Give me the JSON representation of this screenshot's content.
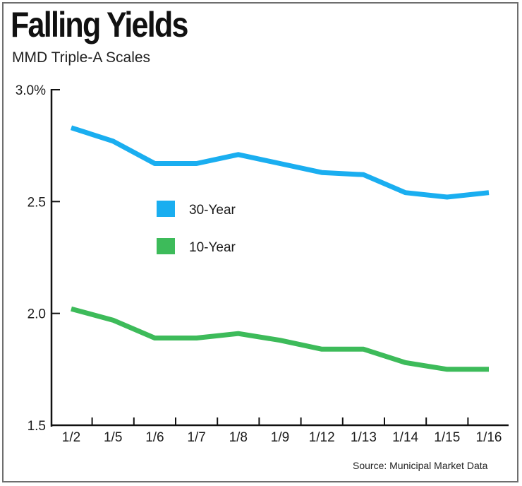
{
  "header": {
    "title": "Falling Yields",
    "subtitle": "MMD Triple-A Scales"
  },
  "footer": {
    "source": "Source: Municipal Market Data"
  },
  "colors": {
    "series_30_year": "#1aaef0",
    "series_10_year": "#3dbb5a",
    "axis": "#111111",
    "text": "#1a1a1a"
  },
  "chart_data": {
    "type": "line",
    "title": "Falling Yields",
    "subtitle": "MMD Triple-A Scales",
    "xlabel": "",
    "ylabel": "",
    "categories": [
      "1/2",
      "1/5",
      "1/6",
      "1/7",
      "1/8",
      "1/9",
      "1/12",
      "1/13",
      "1/14",
      "1/15",
      "1/16"
    ],
    "y_tick_labels": [
      "3.0%",
      "2.5",
      "2.0",
      "1.5"
    ],
    "y_ticks": [
      3.0,
      2.5,
      2.0,
      1.5
    ],
    "ylim": [
      1.5,
      3.0
    ],
    "grid": false,
    "legend_position": "center-left",
    "series": [
      {
        "name": "30-Year",
        "color": "#1aaef0",
        "values": [
          2.83,
          2.77,
          2.67,
          2.67,
          2.71,
          2.67,
          2.63,
          2.62,
          2.54,
          2.52,
          2.54
        ]
      },
      {
        "name": "10-Year",
        "color": "#3dbb5a",
        "values": [
          2.02,
          1.97,
          1.89,
          1.89,
          1.91,
          1.88,
          1.84,
          1.84,
          1.78,
          1.75,
          1.75
        ]
      }
    ]
  }
}
